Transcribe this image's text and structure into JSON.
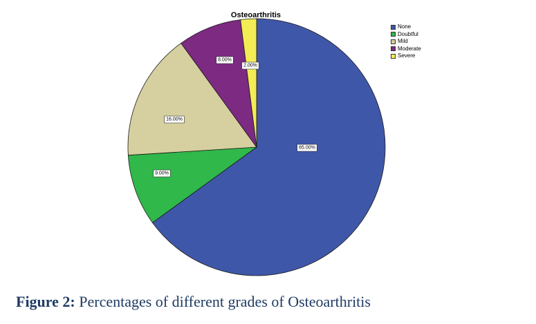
{
  "chart_data": {
    "type": "pie",
    "title": "Osteoarthritis",
    "categories": [
      "None",
      "Doubtful",
      "Mild",
      "Moderate",
      "Severe"
    ],
    "values": [
      65,
      9,
      16,
      8,
      2
    ],
    "data_labels": [
      "65.00%",
      "9.00%",
      "16.00%",
      "8.00%",
      "2.00%"
    ],
    "colors": [
      "#3f57a9",
      "#30b84a",
      "#d6cf9f",
      "#7c2a82",
      "#f3ec55"
    ],
    "start": "12 o'clock",
    "direction": "clockwise",
    "legend_position": "top-right"
  },
  "figure": {
    "caption_label": "Figure 2:",
    "caption_text": " Percentages of different grades of Osteoarthritis"
  }
}
